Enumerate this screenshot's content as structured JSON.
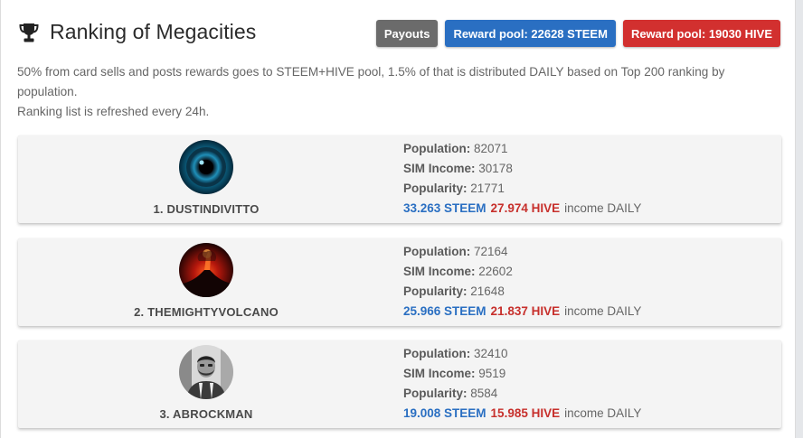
{
  "header": {
    "title": "Ranking of Megacities",
    "buttons": {
      "payouts": "Payouts",
      "steem_pool": "Reward pool: 22628 STEEM",
      "hive_pool": "Reward pool: 19030 HIVE"
    }
  },
  "description": {
    "line1": "50% from card sells and posts rewards goes to STEEM+HIVE pool, 1.5% of that is distributed DAILY based on Top 200 ranking by population.",
    "line2": "Ranking list is refreshed every 24h."
  },
  "labels": {
    "population": "Population:",
    "sim_income": "SIM Income:",
    "popularity": "Popularity:",
    "income_daily": "income DAILY"
  },
  "ranking": [
    {
      "name": "1. DUSTINDIVITTO",
      "population": "82071",
      "sim_income": "30178",
      "popularity": "21771",
      "steem": "33.263 STEEM",
      "hive": "27.974 HIVE"
    },
    {
      "name": "2. THEMIGHTYVOLCANO",
      "population": "72164",
      "sim_income": "22602",
      "popularity": "21648",
      "steem": "25.966 STEEM",
      "hive": "21.837 HIVE"
    },
    {
      "name": "3. ABROCKMAN",
      "population": "32410",
      "sim_income": "9519",
      "popularity": "8584",
      "steem": "19.008 STEEM",
      "hive": "15.985 HIVE"
    }
  ],
  "colors": {
    "steem": "#2a6fc2",
    "hive": "#c7302c",
    "payouts": "#6b6b6b"
  },
  "icons": {
    "header": "trophy-icon",
    "avatars": [
      "eye-avatar",
      "volcano-avatar",
      "person-avatar"
    ]
  }
}
